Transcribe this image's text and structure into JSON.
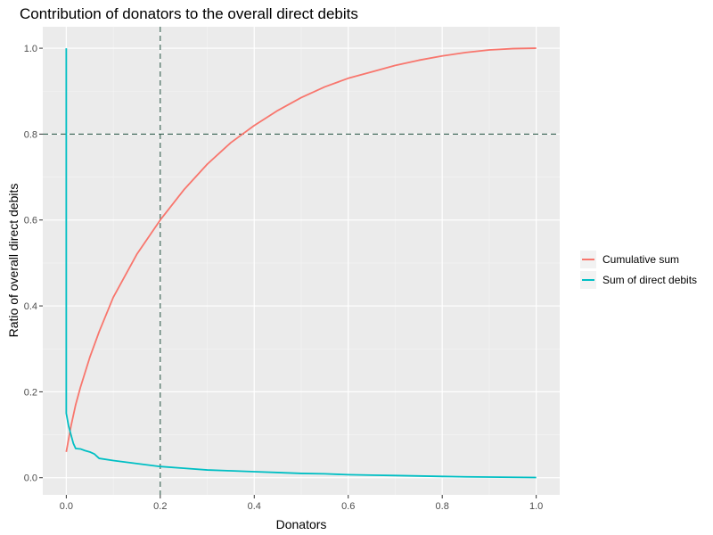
{
  "chart_data": {
    "type": "line",
    "title": "Contribution of donators to the overall direct debits",
    "xlabel": "Donators",
    "ylabel": "Ratio of overall direct debits",
    "xlim": [
      -0.05,
      1.05
    ],
    "ylim": [
      -0.04,
      1.05
    ],
    "xticks": [
      0.0,
      0.2,
      0.4,
      0.6,
      0.8,
      1.0
    ],
    "yticks": [
      0.0,
      0.2,
      0.4,
      0.6,
      0.8,
      1.0
    ],
    "grid": true,
    "legend_position": "right",
    "reference_lines": {
      "vertical_x": 0.2,
      "horizontal_y": 0.8,
      "style": "dashed",
      "color": "#1f4e3d"
    },
    "series": [
      {
        "name": "Cumulative sum",
        "color": "#f8766d",
        "x": [
          0.0,
          0.01,
          0.02,
          0.03,
          0.05,
          0.07,
          0.1,
          0.12,
          0.15,
          0.2,
          0.25,
          0.3,
          0.35,
          0.4,
          0.45,
          0.5,
          0.55,
          0.6,
          0.65,
          0.7,
          0.75,
          0.8,
          0.85,
          0.9,
          0.95,
          1.0
        ],
        "y": [
          0.06,
          0.12,
          0.17,
          0.21,
          0.28,
          0.34,
          0.42,
          0.46,
          0.52,
          0.6,
          0.67,
          0.73,
          0.78,
          0.82,
          0.855,
          0.885,
          0.91,
          0.93,
          0.945,
          0.96,
          0.972,
          0.982,
          0.99,
          0.996,
          0.999,
          1.0
        ]
      },
      {
        "name": "Sum of direct debits",
        "color": "#00bfc4",
        "x": [
          0.0,
          0.0,
          0.0,
          0.005,
          0.01,
          0.015,
          0.02,
          0.03,
          0.04,
          0.05,
          0.06,
          0.065,
          0.07,
          0.1,
          0.15,
          0.2,
          0.25,
          0.3,
          0.35,
          0.4,
          0.45,
          0.5,
          0.55,
          0.6,
          0.65,
          0.7,
          0.75,
          0.8,
          0.85,
          0.9,
          0.95,
          1.0
        ],
        "y": [
          1.0,
          0.5,
          0.15,
          0.12,
          0.1,
          0.08,
          0.068,
          0.067,
          0.063,
          0.06,
          0.055,
          0.05,
          0.045,
          0.04,
          0.033,
          0.026,
          0.022,
          0.018,
          0.016,
          0.014,
          0.012,
          0.01,
          0.009,
          0.007,
          0.006,
          0.005,
          0.004,
          0.003,
          0.002,
          0.0015,
          0.001,
          0.0005
        ]
      }
    ]
  }
}
